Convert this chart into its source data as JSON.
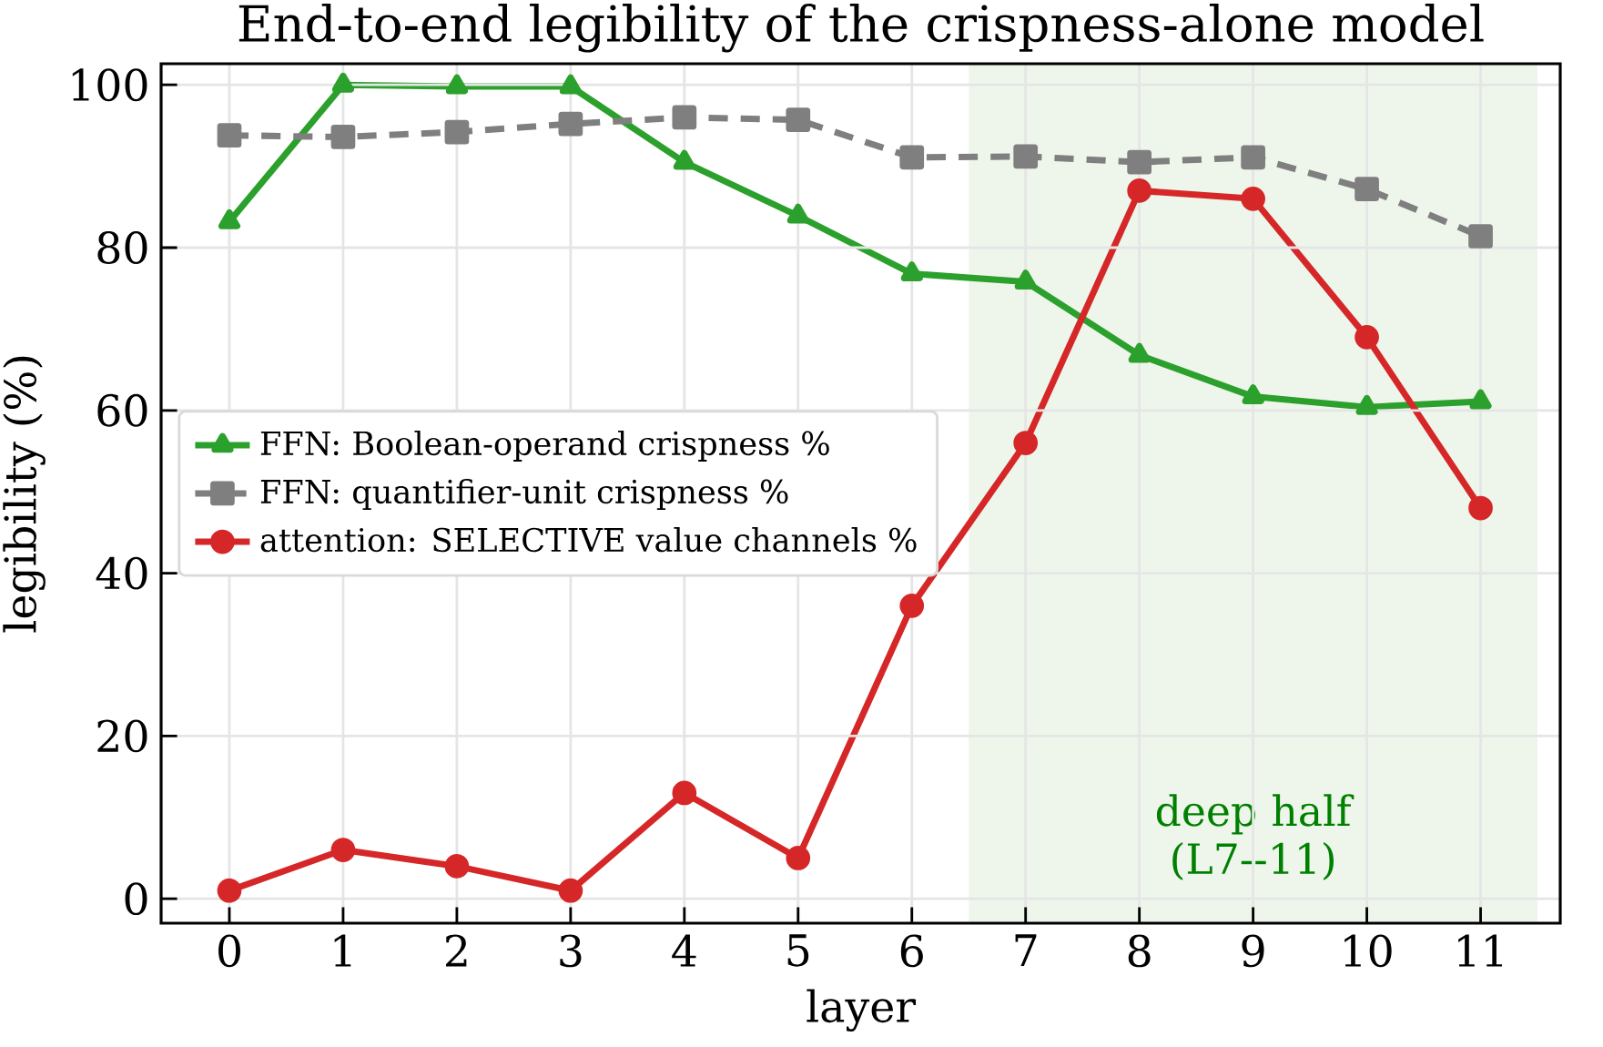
{
  "chart_data": {
    "type": "line",
    "title": "End-to-end legibility of the crispness-alone model",
    "xlabel": "layer",
    "ylabel": "legibility (%)",
    "x": [
      0,
      1,
      2,
      3,
      4,
      5,
      6,
      7,
      8,
      9,
      10,
      11
    ],
    "series": [
      {
        "name": "FFN: Boolean-operand crispness %",
        "color": "#2ca02c",
        "marker": "triangle",
        "line_style": "solid",
        "values": [
          83.2,
          100,
          99.8,
          99.8,
          90.5,
          83.9,
          76.8,
          75.8,
          66.8,
          61.7,
          60.4,
          61.1
        ]
      },
      {
        "name": "FFN: quantifier-unit crispness %",
        "color": "#7f7f7f",
        "marker": "square",
        "line_style": "dashed",
        "values": [
          93.8,
          93.6,
          94.2,
          95.2,
          96.0,
          95.7,
          91.1,
          91.2,
          90.5,
          91.1,
          87.2,
          81.4
        ]
      },
      {
        "name": "attention: SELECTIVE value channels %",
        "color": "#d62728",
        "marker": "circle",
        "line_style": "solid",
        "values": [
          1,
          6,
          4,
          1,
          13,
          5,
          36,
          56,
          87,
          86,
          69,
          48
        ]
      }
    ],
    "xlim": [
      -0.6,
      11.7
    ],
    "ylim": [
      -3,
      102.6
    ],
    "xticks": [
      0,
      1,
      2,
      3,
      4,
      5,
      6,
      7,
      8,
      9,
      10,
      11
    ],
    "yticks": [
      0,
      20,
      40,
      60,
      80,
      100
    ],
    "bands": [
      {
        "axis": "x",
        "from": 6.5,
        "to": 11.5,
        "label": "deep half (L7--11)",
        "color": "#eef6ec"
      }
    ],
    "grid": true,
    "legend": "left"
  }
}
